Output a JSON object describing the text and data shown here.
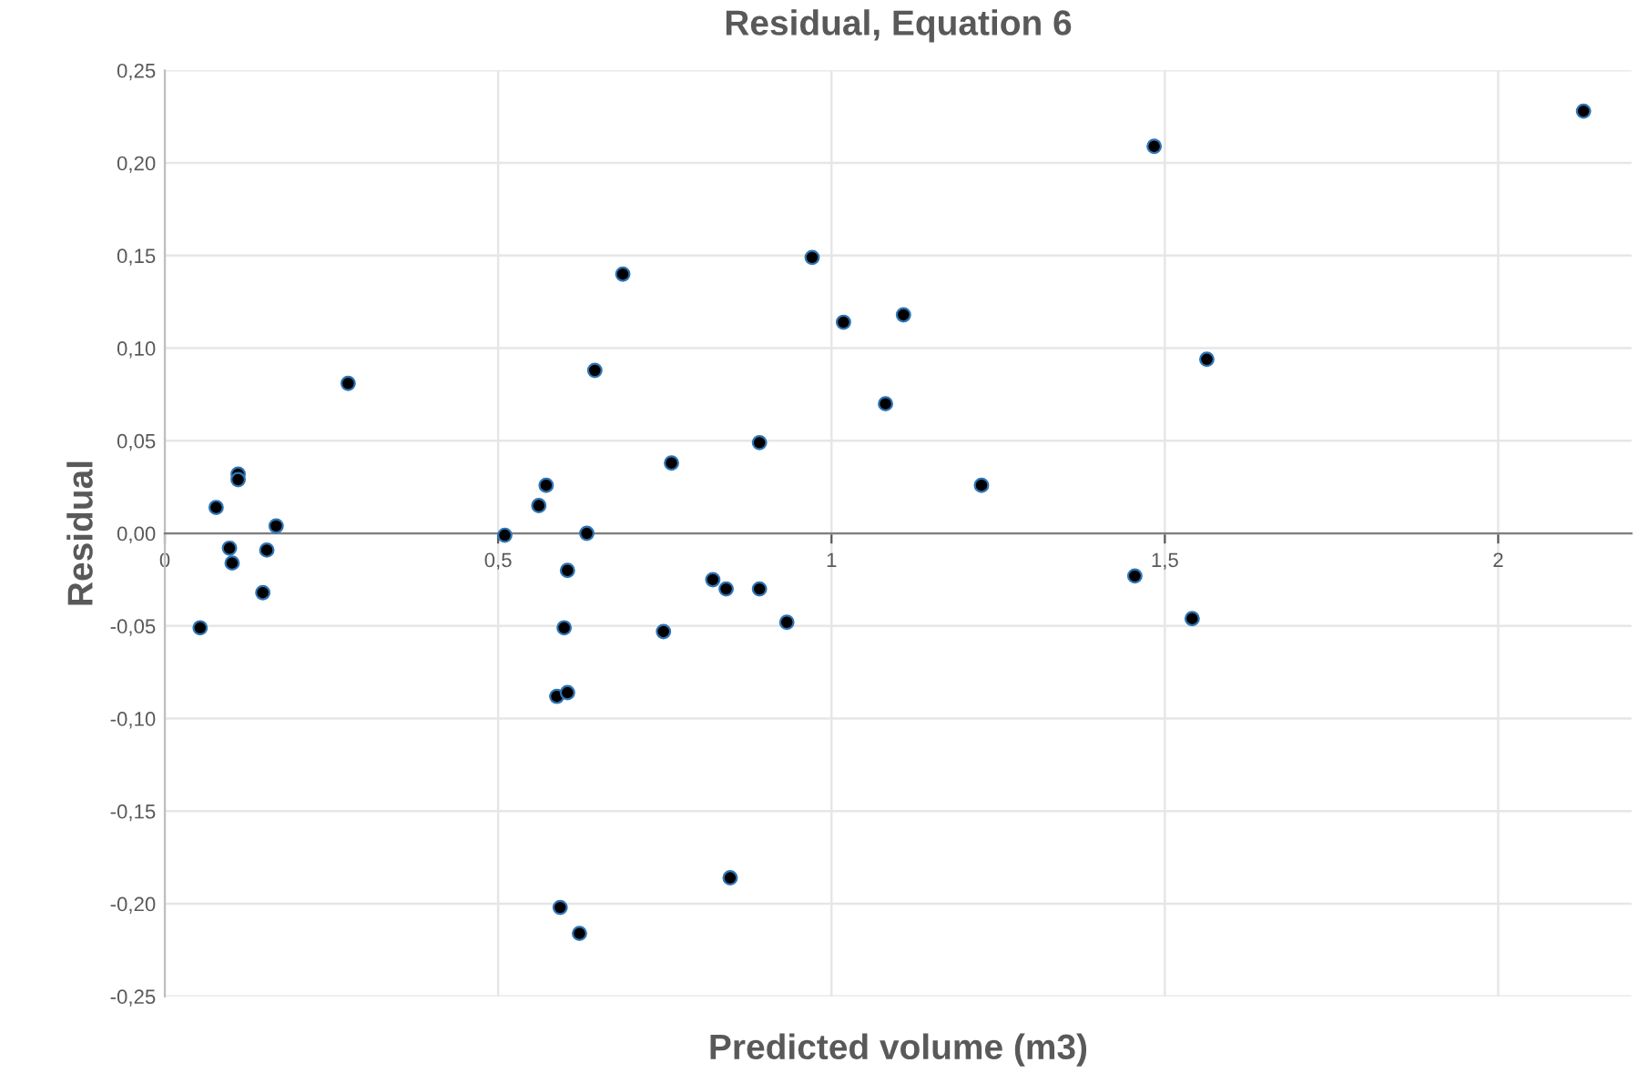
{
  "chart_data": {
    "type": "scatter",
    "title": "Residual, Equation 6",
    "xlabel": "Predicted volume (m3)",
    "ylabel": "Residual",
    "x": [
      0.077,
      0.11,
      0.11,
      0.167,
      0.275,
      0.51,
      0.561,
      0.572,
      0.633,
      0.645,
      0.687,
      0.76,
      0.892,
      0.971,
      0.097,
      0.101,
      0.053,
      0.153,
      0.147,
      0.604,
      0.599,
      0.588,
      0.604,
      0.593,
      0.622,
      0.748,
      0.822,
      0.842,
      0.892,
      0.933,
      0.848,
      1.018,
      1.108,
      1.081,
      1.225,
      1.484,
      1.563,
      2.128,
      1.455,
      1.541
    ],
    "series": [
      {
        "color": "#000000",
        "values": [
          0.014,
          0.032,
          0.029,
          0.004,
          0.081,
          -0.001,
          0.015,
          0.026,
          0.0,
          0.088,
          0.14,
          0.038,
          0.049,
          0.149,
          -0.008,
          -0.016,
          -0.051,
          -0.009,
          -0.032,
          -0.02,
          -0.051,
          -0.088,
          -0.086,
          -0.202,
          -0.216,
          -0.053,
          -0.025,
          -0.03,
          -0.03,
          -0.048,
          -0.186,
          0.114,
          0.118,
          0.07,
          0.026,
          0.209,
          0.094,
          0.228,
          -0.023,
          -0.046
        ]
      }
    ],
    "xlim": [
      0,
      2.2
    ],
    "ylim": [
      -0.25,
      0.25
    ],
    "xticks": [
      0,
      {
        "value": 0.5,
        "label": "0,5"
      },
      1,
      {
        "value": 1.5,
        "label": "1,5"
      },
      2
    ],
    "yticks": [
      {
        "value": -0.25,
        "label": "-0,25"
      },
      {
        "value": -0.2,
        "label": "-0,20"
      },
      {
        "value": -0.15,
        "label": "-0,15"
      },
      {
        "value": -0.1,
        "label": "-0,10"
      },
      {
        "value": -0.05,
        "label": "-0,05"
      },
      {
        "value": 0,
        "label": "0,00"
      },
      {
        "value": 0.05,
        "label": "0,05"
      },
      {
        "value": 0.1,
        "label": "0,10"
      },
      {
        "value": 0.15,
        "label": "0,15"
      },
      {
        "value": 0.2,
        "label": "0,20"
      },
      {
        "value": 0.25,
        "label": "0,25"
      }
    ],
    "grid": true,
    "marker": "circle"
  }
}
